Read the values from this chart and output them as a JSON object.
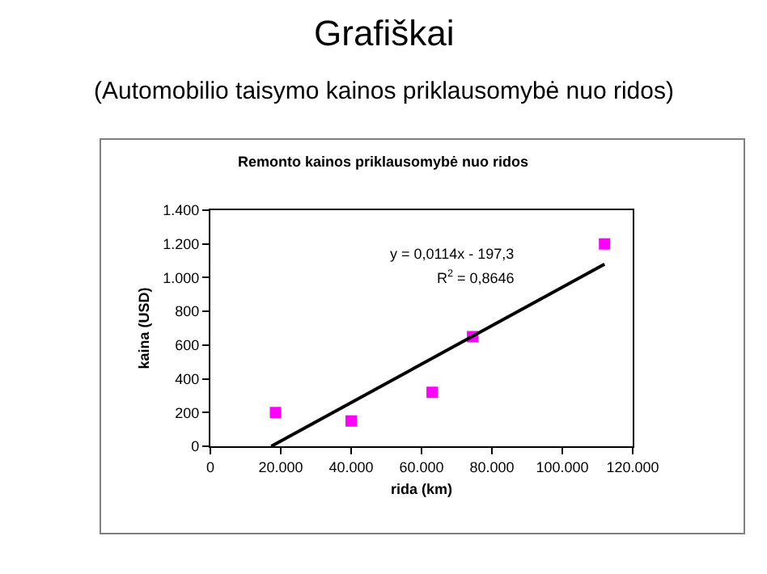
{
  "chart_data": {
    "type": "scatter",
    "title": "Grafiškai",
    "subtitle": "(Automobilio taisymo kainos priklausomybė nuo ridos)",
    "xlabel": "rida (km)",
    "ylabel": "kaina (USD)",
    "annotations": [
      "Remonto kainos priklausomybė nuo ridos",
      "y = 0,0114x - 197,3",
      "R$^{2}$ = 0,8646"
    ],
    "series": [
      {
        "color": "#ff00ff",
        "marker": "square",
        "x": [
          18500,
          40000,
          63000,
          74500,
          112000
        ],
        "values": [
          200,
          150,
          320,
          650,
          1200
        ]
      },
      {
        "type": "line",
        "color": "#000000",
        "marker": "none",
        "line_style": "solid",
        "x": [
          17300,
          112000
        ],
        "values": [
          0,
          1080
        ]
      }
    ],
    "xlim": [
      0,
      120000
    ],
    "xticks": [
      0,
      {
        "value": 20000,
        "label": "20.000"
      },
      {
        "value": 40000,
        "label": "40.000"
      },
      {
        "value": 60000,
        "label": "60.000"
      },
      {
        "value": 80000,
        "label": "80.000"
      },
      {
        "value": 100000,
        "label": "100.000"
      },
      {
        "value": 120000,
        "label": "120.000"
      }
    ],
    "yticks": [
      0,
      200,
      400,
      600,
      800,
      {
        "value": 1000,
        "label": "1.000"
      },
      {
        "value": 1200,
        "label": "1.200"
      },
      {
        "value": 1400,
        "label": "1.400"
      }
    ],
    "ylim": [
      0,
      1400
    ]
  }
}
